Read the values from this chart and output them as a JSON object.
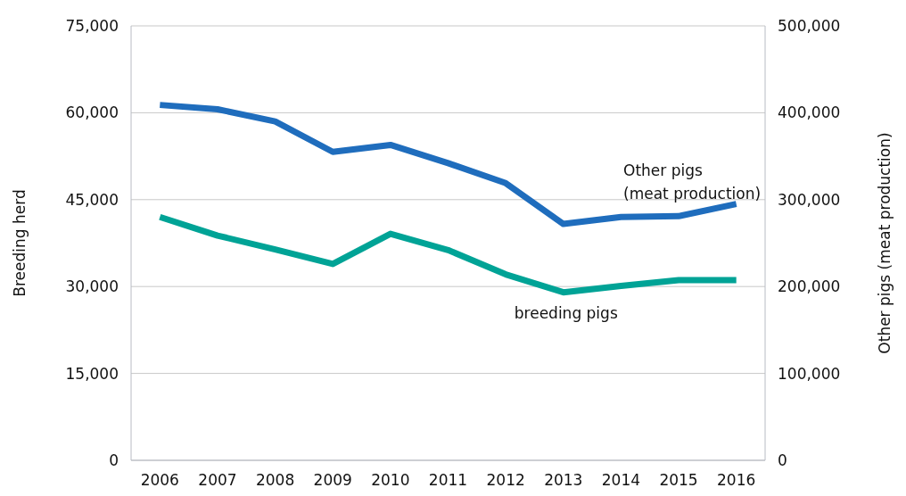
{
  "chart_data": {
    "type": "line",
    "ylabel": "Breeding herd",
    "y2label": "Other pigs (meat production)",
    "categories": [
      "2006",
      "2007",
      "2008",
      "2009",
      "2010",
      "2011",
      "2012",
      "2013",
      "2014",
      "2015",
      "2016"
    ],
    "series": [
      {
        "name": "Other pigs (meat production)",
        "color": "#1f6dbd",
        "axis": "y2",
        "values": [
          409000,
          404000,
          390000,
          355000,
          363000,
          342000,
          319000,
          272000,
          280000,
          281000,
          295000
        ]
      },
      {
        "name": "breeding pigs",
        "color": "#00a396",
        "values": [
          42000,
          38800,
          36400,
          33900,
          39100,
          36300,
          32100,
          29000,
          30100,
          31100,
          31100
        ]
      }
    ],
    "ylim": [
      0,
      75000
    ],
    "yticks": [
      0,
      {
        "value": 15000,
        "label": "15,000"
      },
      {
        "value": 30000,
        "label": "30,000"
      },
      {
        "value": 45000,
        "label": "45,000"
      },
      {
        "value": 60000,
        "label": "60,000"
      },
      {
        "value": 75000,
        "label": "75,000"
      }
    ],
    "y2lim": [
      0,
      500000
    ],
    "y2ticks": [
      0,
      {
        "value": 100000,
        "label": "100,000"
      },
      {
        "value": 200000,
        "label": "200,000"
      },
      {
        "value": 300000,
        "label": "300,000"
      },
      {
        "value": 400000,
        "label": "400,000"
      },
      {
        "value": 500000,
        "label": "500,000"
      }
    ],
    "grid": "y",
    "legend": false,
    "marker": "none",
    "line_style": "solid"
  }
}
